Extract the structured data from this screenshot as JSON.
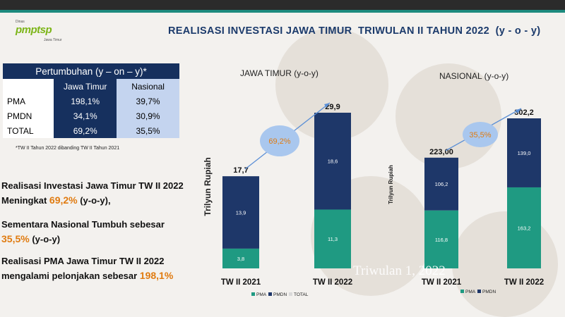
{
  "logo": {
    "small": "Dinas",
    "main": "pmptsp",
    "sub": "Jawa Timur"
  },
  "title": "REALISASI INVESTASI JAWA TIMUR  TRIWULAN II TAHUN 2022  (y - o - y)",
  "growth_table": {
    "header": "Pertumbuhan (y – on – y)*",
    "columns": [
      "",
      "Jawa Timur",
      "Nasional"
    ],
    "rows": [
      {
        "label": "PMA",
        "jawa_timur": "198,1%",
        "nasional": "39,7%"
      },
      {
        "label": "PMDN",
        "jawa_timur": "34,1%",
        "nasional": "30,9%"
      },
      {
        "label": "TOTAL",
        "jawa_timur": "69,2%",
        "nasional": "35,5%"
      }
    ],
    "note": "*TW II Tahun 2022 dibanding TW II Tahun 2021"
  },
  "bullets": [
    {
      "line1": "Realisasi Investasi Jawa Timur TW II 2022",
      "line2_pre": "Meningkat ",
      "highlight": "69,2%",
      "line2_post": " (y-o-y),",
      "highlight_line": 2
    },
    {
      "line1": "Sementara Nasional Tumbuh sebesar",
      "line2_pre": "",
      "highlight": "35,5%",
      "line2_post": " (y-o-y)",
      "highlight_line": 2
    },
    {
      "line1": "Realisasi PMA Jawa Timur TW II 2022",
      "line2_pre": "mengalami pelonjakan sebesar ",
      "highlight": "198,1%",
      "line2_post": "",
      "highlight_line": 2
    }
  ],
  "watermark": "Triwulan 1, 2022",
  "colors": {
    "pma": "#1f9a82",
    "pmdn": "#1e3769",
    "total": "#d9d9d9",
    "arrow": "#5b8fd6",
    "bubble": "#a9c7ee",
    "highlight": "#e07b10",
    "title": "#1b3a6b"
  },
  "chart_data": [
    {
      "type": "bar",
      "stacked": true,
      "title": "JAWA TIMUR (y-o-y)",
      "ylabel": "Trilyun Rupiah",
      "categories": [
        "TW II 2021",
        "TW II 2022"
      ],
      "series": [
        {
          "name": "PMA",
          "values": [
            3.8,
            11.3
          ]
        },
        {
          "name": "PMDN",
          "values": [
            13.9,
            18.6
          ]
        }
      ],
      "totals": [
        17.7,
        29.9
      ],
      "total_labels": [
        "17,7",
        "29,9"
      ],
      "value_labels": {
        "PMA": [
          "3,8",
          "11,3"
        ],
        "PMDN": [
          "13,9",
          "18,6"
        ]
      },
      "growth_label": "69,2%",
      "legend": [
        "PMA",
        "PMDN",
        "TOTAL"
      ],
      "ylim": [
        0,
        29.9
      ]
    },
    {
      "type": "bar",
      "stacked": true,
      "title": "NASIONAL (y-o-y)",
      "ylabel": "Trilyun Rupiah",
      "categories": [
        "TW II 2021",
        "TW II 2022"
      ],
      "series": [
        {
          "name": "PMA",
          "values": [
            116.8,
            163.2
          ]
        },
        {
          "name": "PMDN",
          "values": [
            106.2,
            139.0
          ]
        }
      ],
      "totals": [
        223.0,
        302.2
      ],
      "total_labels": [
        "223,00",
        "302,2"
      ],
      "value_labels": {
        "PMA": [
          "116,8",
          "163,2"
        ],
        "PMDN": [
          "106,2",
          "139,0"
        ]
      },
      "growth_label": "35,5%",
      "legend": [
        "PMA",
        "PMDN"
      ],
      "ylim": [
        0,
        302.2
      ]
    }
  ]
}
